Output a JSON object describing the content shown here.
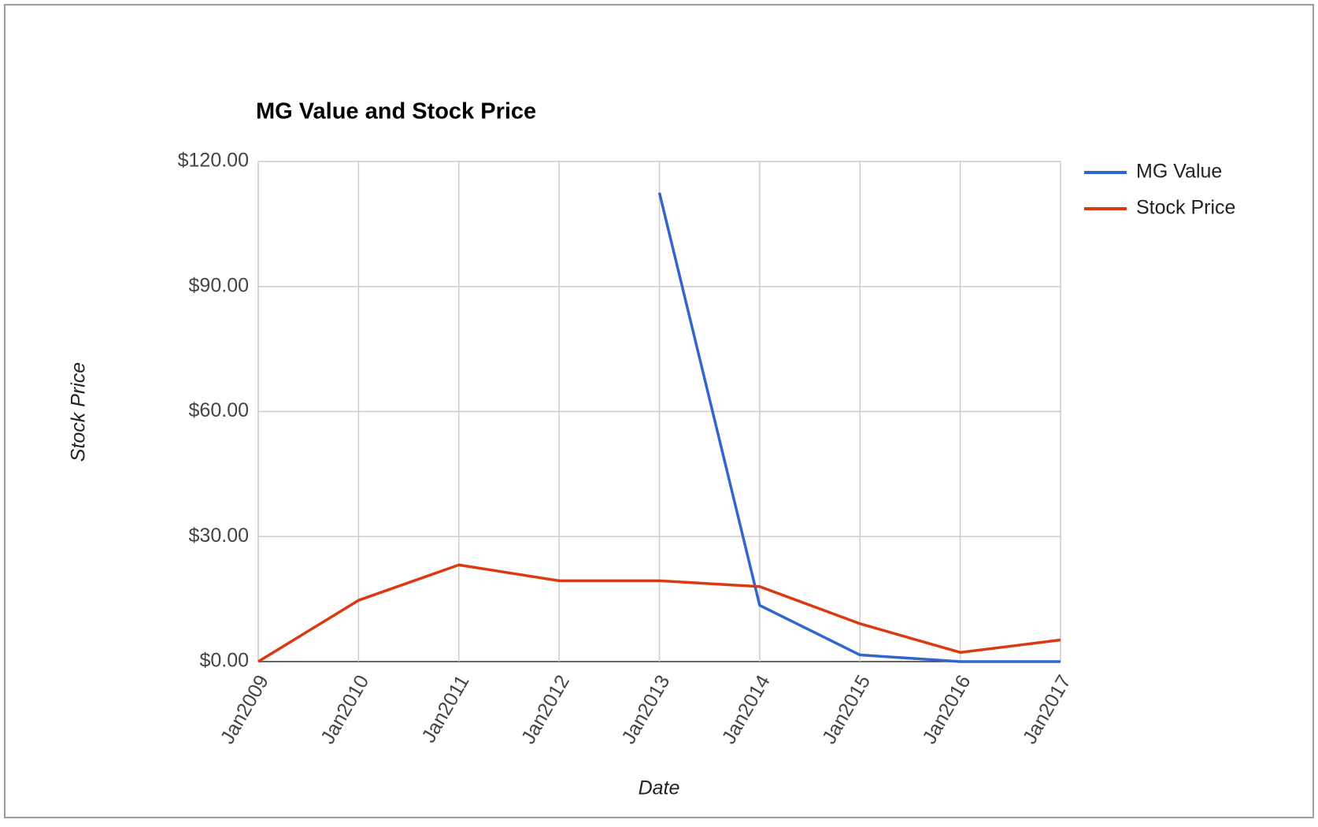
{
  "chart_data": {
    "type": "line",
    "title": "MG Value and Stock Price",
    "x_label": "Date",
    "y_label": "Stock Price",
    "categories": [
      "Jan2009",
      "Jan2010",
      "Jan2011",
      "Jan2012",
      "Jan2013",
      "Jan2014",
      "Jan2015",
      "Jan2016",
      "Jan2017"
    ],
    "series": [
      {
        "name": "MG Value",
        "color": "#3366cc",
        "values": [
          null,
          null,
          null,
          null,
          112.5,
          13.5,
          1.6,
          0,
          0
        ]
      },
      {
        "name": "Stock Price",
        "color": "#dc3912",
        "values": [
          0,
          14.7,
          23.2,
          19.4,
          19.4,
          18.0,
          9.1,
          2.2,
          5.2
        ]
      }
    ],
    "ylim": [
      0,
      120
    ],
    "yticks": [
      {
        "value": 0,
        "label": "$0.00"
      },
      {
        "value": 30,
        "label": "$30.00"
      },
      {
        "value": 60,
        "label": "$60.00"
      },
      {
        "value": 90,
        "label": "$90.00"
      },
      {
        "value": 120,
        "label": "$120.00"
      }
    ],
    "grid": true,
    "legend": "right"
  }
}
